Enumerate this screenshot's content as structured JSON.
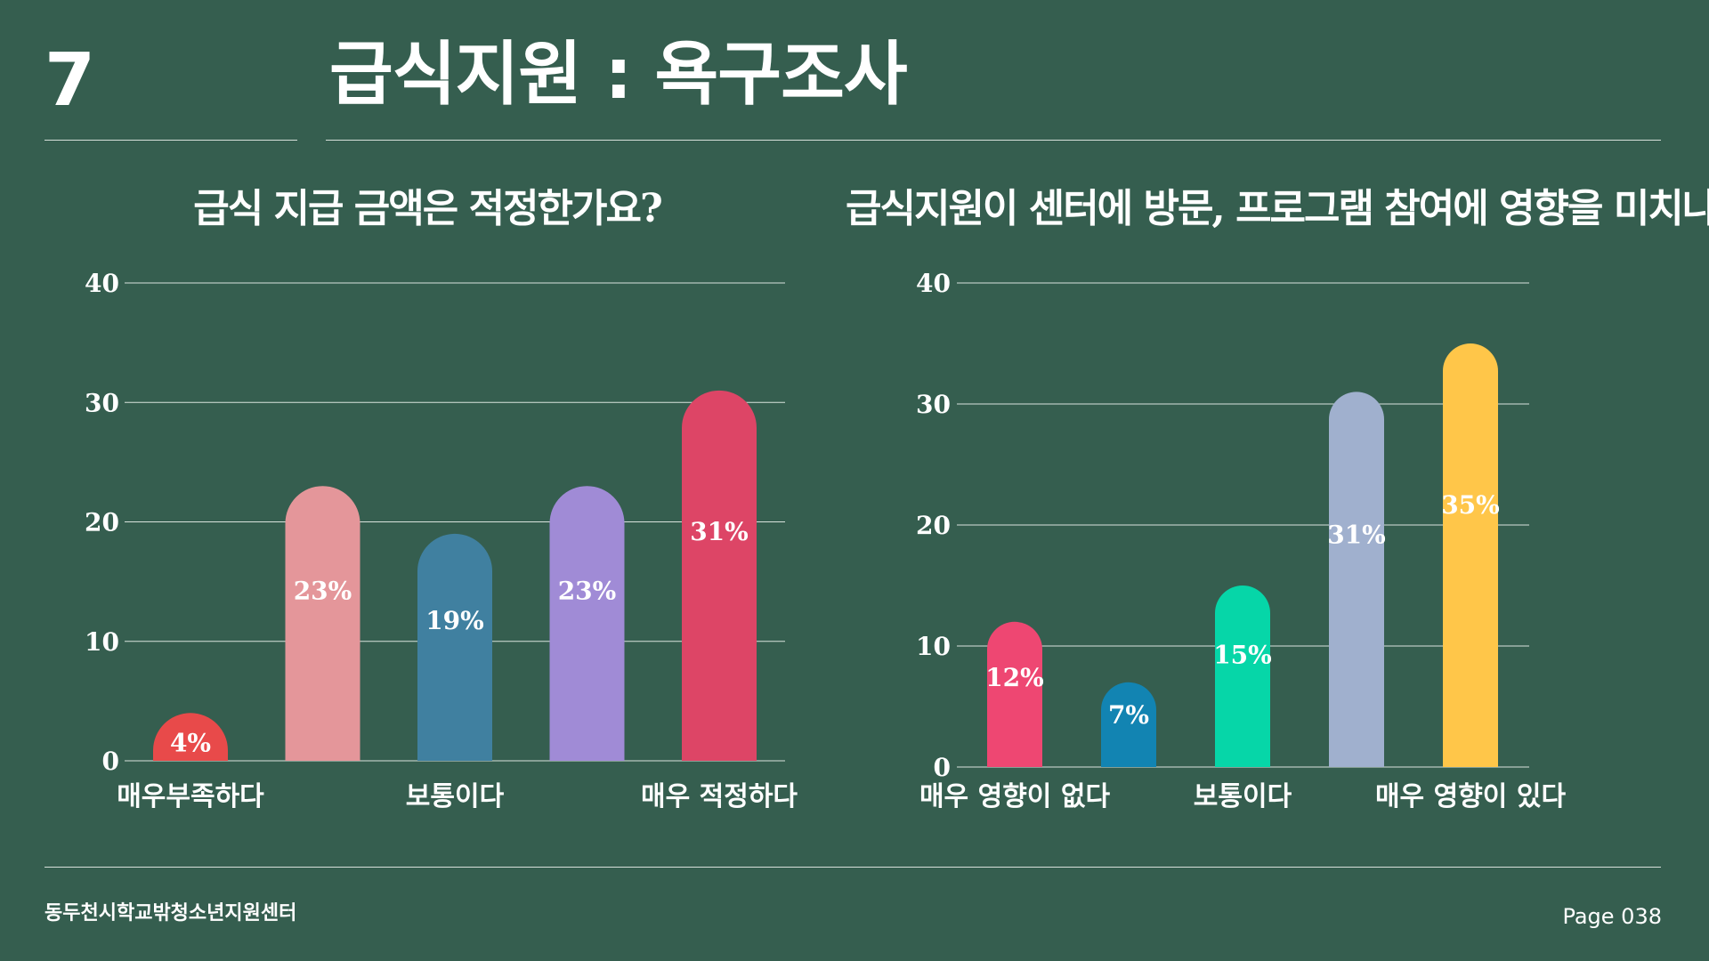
{
  "header": {
    "section_number": "7",
    "title": "급식지원 : 욕구조사"
  },
  "footer": {
    "organization": "동두천시학교밖청소년지원센터",
    "page": "Page 038"
  },
  "chart_data": [
    {
      "type": "bar",
      "title": "급식 지급 금액은 적정한가요?",
      "xlabel": "",
      "ylabel": "",
      "categories": [
        "매우부족하다",
        "",
        "보통이다",
        "",
        "매우 적정하다"
      ],
      "values": [
        4,
        23,
        19,
        23,
        31
      ],
      "data_labels": [
        "4%",
        "23%",
        "19%",
        "23%",
        "31%"
      ],
      "colors": [
        "#e84a4a",
        "#e4969a",
        "#4080a0",
        "#a08bd6",
        "#dd4566"
      ],
      "ylim": [
        0,
        40
      ],
      "yticks": [
        0,
        10,
        20,
        30,
        40
      ],
      "grid": true
    },
    {
      "type": "bar",
      "title": "급식지원이 센터에 방문, 프로그램 참여에 영향을 미치나요?",
      "xlabel": "",
      "ylabel": "",
      "categories": [
        "매우 영향이 없다",
        "",
        "보통이다",
        "",
        "매우 영향이 있다"
      ],
      "values": [
        12,
        7,
        15,
        31,
        35
      ],
      "data_labels": [
        "12%",
        "7%",
        "15%",
        "31%",
        "35%"
      ],
      "colors": [
        "#ee4772",
        "#1284b2",
        "#06d6a8",
        "#a0b0ce",
        "#ffc649"
      ],
      "ylim": [
        0,
        40
      ],
      "yticks": [
        0,
        10,
        20,
        30,
        40
      ],
      "grid": true
    }
  ]
}
